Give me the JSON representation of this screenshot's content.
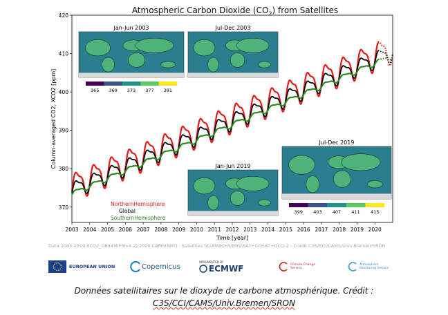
{
  "colors": {
    "north": "#e41a1c",
    "global": "#000000",
    "south": "#2a8a1f",
    "land": "#ffffff",
    "ocean": "#d9d9d9"
  },
  "chart_data": {
    "type": "line",
    "title": "Atmospheric Carbon Dioxide (CO2) from Satellites",
    "xlabel": "Time [year]",
    "ylabel": "Column-averaged CO2, XCO2 [ppm]",
    "xlim": [
      2003,
      2021
    ],
    "ylim": [
      366,
      420
    ],
    "xticks": [
      "2003",
      "2004",
      "2005",
      "2006",
      "2007",
      "2008",
      "2009",
      "2010",
      "2011",
      "2012",
      "2013",
      "2014",
      "2015",
      "2016",
      "2017",
      "2018",
      "2019",
      "2020"
    ],
    "yticks": [
      "370",
      "380",
      "390",
      "400",
      "410",
      "420"
    ],
    "grid": false,
    "legend_placement": "bottom-left",
    "series": [
      {
        "name": "NorthernHemisphere",
        "color": "#e41a1c",
        "start_year": 2003.0,
        "start_value": 375.5,
        "annual_growth": 2.0,
        "amplitude": 3.3
      },
      {
        "name": "Global",
        "color": "#000000",
        "start_year": 2003.0,
        "start_value": 374.5,
        "annual_growth": 2.0,
        "amplitude": 2.0
      },
      {
        "name": "SouthernHemisphere",
        "color": "#2a8a1f",
        "start_year": 2003.0,
        "start_value": 373.5,
        "annual_growth": 2.0,
        "amplitude": 0.6
      }
    ],
    "nrt_segment": {
      "from_year": 2020.2,
      "to_year": 2021.0,
      "style": "dotted"
    },
    "insets": [
      {
        "label": "Jan-Jun 2003",
        "colorbar_ticks": [
          "365",
          "369",
          "373",
          "377",
          "381"
        ]
      },
      {
        "label": "Jul-Dec 2003"
      },
      {
        "label": "Jan-Jun 2019"
      },
      {
        "label": "Jul-Dec 2019",
        "colorbar_ticks": [
          "399",
          "403",
          "407",
          "411",
          "415"
        ]
      }
    ]
  },
  "title_text": "Atmospheric Carbon Dioxide (CO",
  "title_sub": "2",
  "title_tail": ") from Satellites",
  "credit": "Data:2003-2019:XCO2_OBS4MIPS(v4.2);2020:CAMS(NRT) - Satellites:SCIAMACHY/ENVISAT+GOSAT+OCO-2 - Credit:C3S/CCI/CAMS/Univ.Bremen/SRON",
  "logos": {
    "eu": "EUROPEAN UNION",
    "copernicus": "Copernicus",
    "ecmwf": "ECMWF",
    "ecmwf_sub": "IMPLEMENTED BY",
    "c3s": "Climate Change Service",
    "cams": "Atmosphere Monitoring Service"
  },
  "caption": {
    "line1": "Données satellitaires sur le dioxyde de carbone atmosphérique. Crédit :",
    "line2": "C3S/CCI/CAMS/Univ.Bremen/SRON"
  }
}
